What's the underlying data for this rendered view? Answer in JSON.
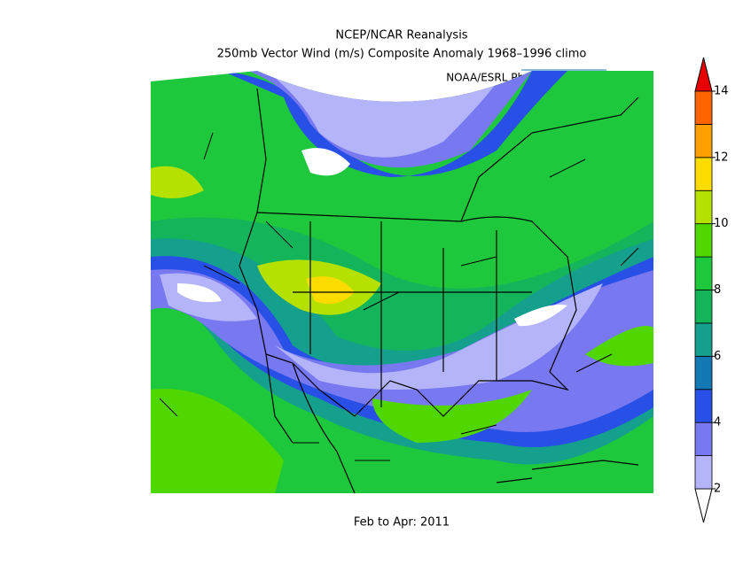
{
  "header": {
    "title": "NCEP/NCAR Reanalysis",
    "subtitle": "250mb Vector Wind (m/s) Composite Anomaly 1968–1996 climo",
    "credit": "NOAA/ESRL Physical Sciences Division"
  },
  "footer": "Feb to Apr: 2011",
  "colorbar": {
    "levels": [
      2,
      3,
      4,
      5,
      6,
      7,
      8,
      9,
      10,
      11,
      12,
      13,
      14
    ],
    "ticks": [
      2,
      4,
      6,
      8,
      10,
      12,
      14
    ],
    "colors": [
      "#ffffff",
      "#b4b4fa",
      "#7878f0",
      "#2850e6",
      "#1478b4",
      "#14a08c",
      "#14b45a",
      "#1ec83c",
      "#50d700",
      "#b4e100",
      "#ffdc00",
      "#ffa000",
      "#ff6400",
      "#e60000"
    ]
  }
}
